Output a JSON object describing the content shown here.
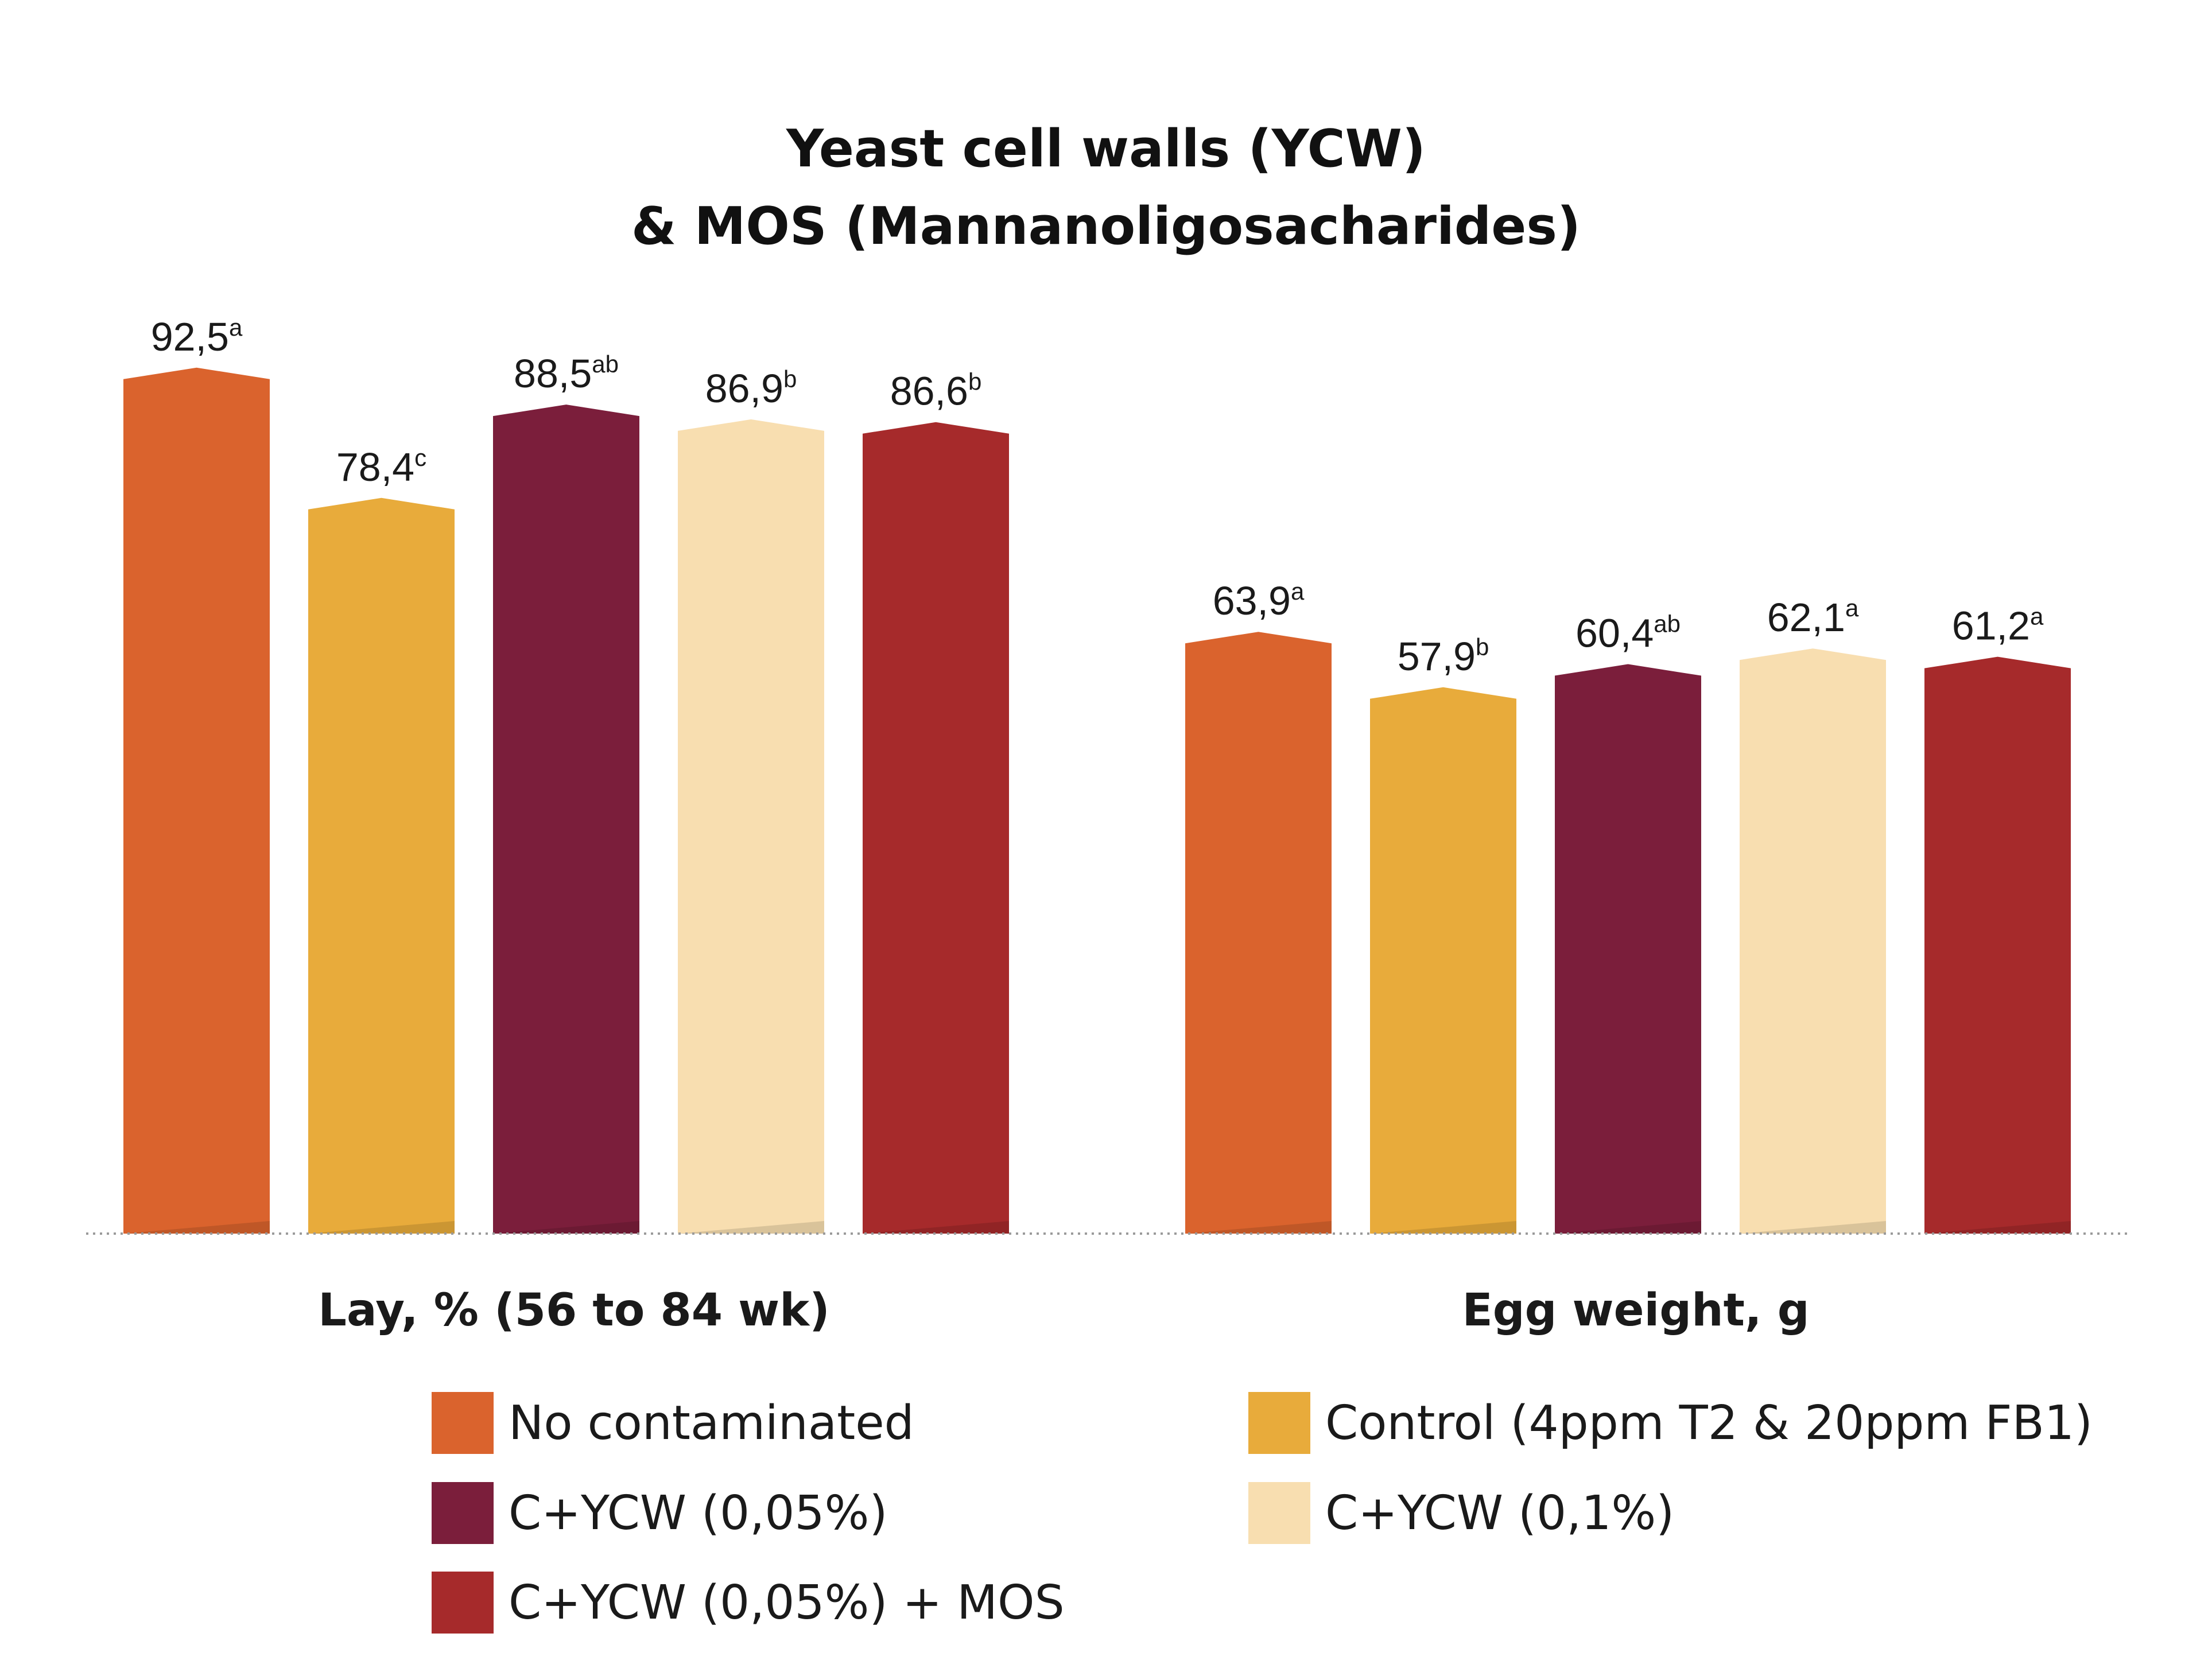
{
  "chart_data": {
    "type": "bar",
    "title": [
      "Yeast cell walls (YCW)",
      "& MOS (Mannanoligosacharides)"
    ],
    "categories": [
      "Lay, % (56 to 84 wk)",
      "Egg weight, g"
    ],
    "series": [
      {
        "name": "No contaminated",
        "color": "#DA632D",
        "values": [
          92.5,
          63.9
        ],
        "labels": [
          "92,5",
          "63,9"
        ],
        "superscripts": [
          "a",
          "a"
        ]
      },
      {
        "name": "Control (4ppm T2 & 20ppm FB1)",
        "color": "#E8AB3B",
        "values": [
          78.4,
          57.9
        ],
        "labels": [
          "78,4",
          "57,9"
        ],
        "superscripts": [
          "c",
          "b"
        ]
      },
      {
        "name": "C+YCW (0,05%)",
        "color": "#7B1E3B",
        "values": [
          88.5,
          60.4
        ],
        "labels": [
          "88,5",
          "60,4"
        ],
        "superscripts": [
          "ab",
          "ab"
        ]
      },
      {
        "name": "C+YCW (0,1%)",
        "color": "#F8DEB0",
        "values": [
          86.9,
          62.1
        ],
        "labels": [
          "86,9",
          "62,1"
        ],
        "superscripts": [
          "b",
          "a"
        ]
      },
      {
        "name": "C+YCW (0,05%) + MOS",
        "color": "#A62A2B",
        "values": [
          86.6,
          61.2
        ],
        "labels": [
          "86,6",
          "61,2"
        ],
        "superscripts": [
          "b",
          "a"
        ]
      }
    ],
    "legend_position": "bottom",
    "grid": false,
    "baseline": "dotted"
  }
}
